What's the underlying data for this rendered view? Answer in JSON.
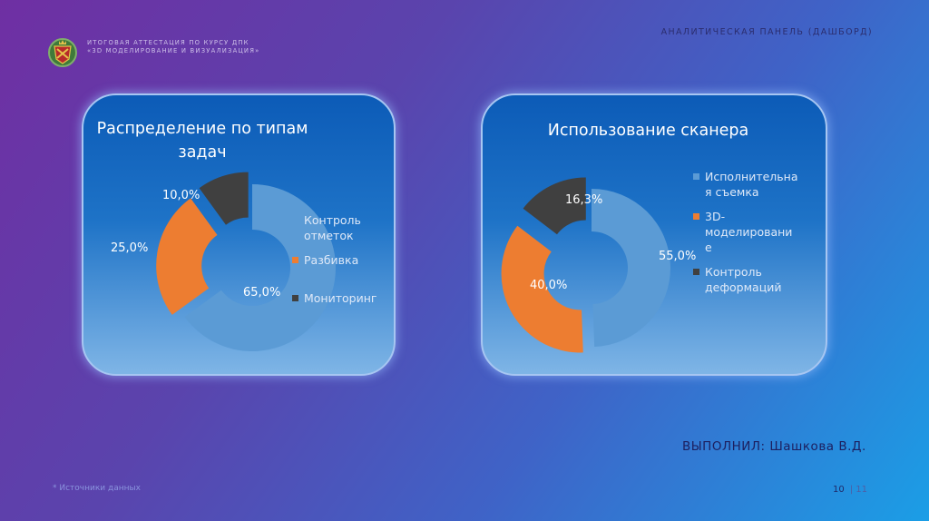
{
  "header": {
    "line1": "ИТОГОВАЯ АТТЕСТАЦИЯ ПО КУРСУ ДПК",
    "line2": "«3D МОДЕЛИРОВАНИЕ И ВИЗУАЛИЗАЦИЯ»",
    "right_title": "АНАЛИТИЧЕСКАЯ ПАНЕЛЬ (ДАШБОРД)"
  },
  "emblem": {
    "icon": "crest-icon"
  },
  "chart_data": [
    {
      "type": "pie",
      "title_lines": [
        "Распределение по типам",
        "задач"
      ],
      "donut": true,
      "legend_position": "right",
      "slices": [
        {
          "legend_lines": [
            "Контроль",
            "отметок"
          ],
          "value": 65.0,
          "label": "65,0%",
          "color": "#5b9bd5"
        },
        {
          "legend_lines": [
            "Разбивка"
          ],
          "value": 25.0,
          "label": "25,0%",
          "color": "#ed7d31"
        },
        {
          "legend_lines": [
            "Мониторинг"
          ],
          "value": 10.0,
          "label": "10,0%",
          "color": "#404040"
        }
      ]
    },
    {
      "type": "pie",
      "title_lines": [
        "Использование сканера"
      ],
      "donut": true,
      "legend_position": "right",
      "slices": [
        {
          "legend_lines": [
            "Исполнительна",
            "я съемка"
          ],
          "value": 55.0,
          "label": "55,0%",
          "color": "#5b9bd5"
        },
        {
          "legend_lines": [
            "3D-",
            "моделировани",
            "е"
          ],
          "value": 40.0,
          "label": "40,0%",
          "color": "#ed7d31"
        },
        {
          "legend_lines": [
            "Контроль",
            "деформаций"
          ],
          "value": 16.3,
          "label": "16,3%",
          "color": "#404040"
        }
      ]
    }
  ],
  "footer": {
    "author": "ВЫПОЛНИЛ: Шашкова В.Д.",
    "sources": "* Источники данных",
    "page_current": "10",
    "page_total": "| 11"
  }
}
